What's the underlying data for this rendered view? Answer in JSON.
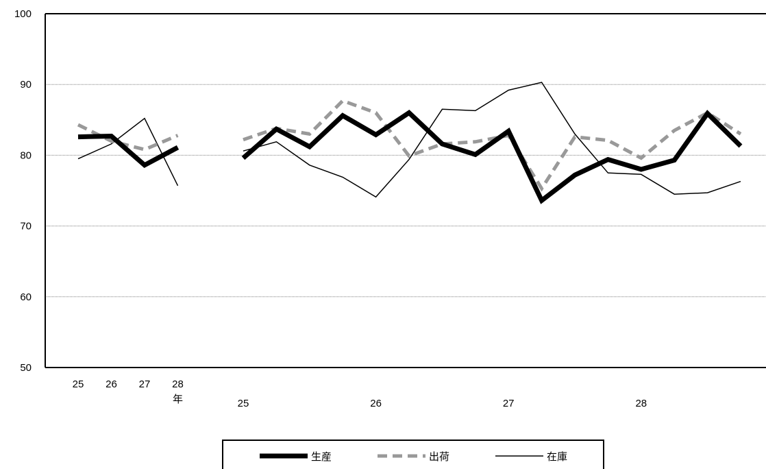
{
  "chart_data": {
    "type": "line",
    "title": "",
    "xlabel": "",
    "ylabel": "",
    "ylim": [
      50,
      100
    ],
    "yticks": [
      "50",
      "60",
      "70",
      "80",
      "90",
      "100"
    ],
    "grid": "horizontal dotted",
    "legend_position": "bottom",
    "annual": {
      "categories": [
        "25",
        "26",
        "27",
        "28"
      ],
      "unit_label": "年",
      "series": [
        {
          "name": "生産",
          "values": [
            82.6,
            82.7,
            78.6,
            81.1
          ]
        },
        {
          "name": "出荷",
          "values": [
            84.3,
            82.0,
            80.8,
            82.8
          ]
        },
        {
          "name": "在庫",
          "values": [
            79.5,
            81.6,
            85.2,
            75.7
          ]
        }
      ]
    },
    "quarterly": {
      "year_labels": [
        {
          "label": "25",
          "index": 0
        },
        {
          "label": "26",
          "index": 4
        },
        {
          "label": "27",
          "index": 8
        },
        {
          "label": "28",
          "index": 12
        }
      ],
      "point_count": 16,
      "series": [
        {
          "name": "生産",
          "values": [
            79.6,
            83.7,
            81.2,
            85.6,
            82.9,
            86.0,
            81.6,
            80.1,
            83.4,
            73.6,
            77.2,
            79.4,
            78.0,
            79.3,
            85.9,
            81.3
          ]
        },
        {
          "name": "出荷",
          "values": [
            82.2,
            83.8,
            83.0,
            87.7,
            86.0,
            79.9,
            81.6,
            81.9,
            82.8,
            75.3,
            82.6,
            82.1,
            79.6,
            83.5,
            86.0,
            83.0
          ]
        },
        {
          "name": "在庫",
          "values": [
            80.6,
            81.9,
            78.6,
            76.9,
            74.1,
            79.4,
            86.5,
            86.3,
            89.2,
            90.3,
            83.0,
            77.5,
            77.3,
            74.5,
            74.7,
            76.3
          ]
        }
      ]
    },
    "series_styles": [
      {
        "name": "生産",
        "color": "#000000",
        "dash": "solid",
        "weight": "heavy"
      },
      {
        "name": "出荷",
        "color": "#999999",
        "dash": "dashed",
        "weight": "medium"
      },
      {
        "name": "在庫",
        "color": "#000000",
        "dash": "solid",
        "weight": "thin"
      }
    ]
  },
  "legend": {
    "items": [
      {
        "label": "生産"
      },
      {
        "label": "出荷"
      },
      {
        "label": "在庫"
      }
    ]
  }
}
